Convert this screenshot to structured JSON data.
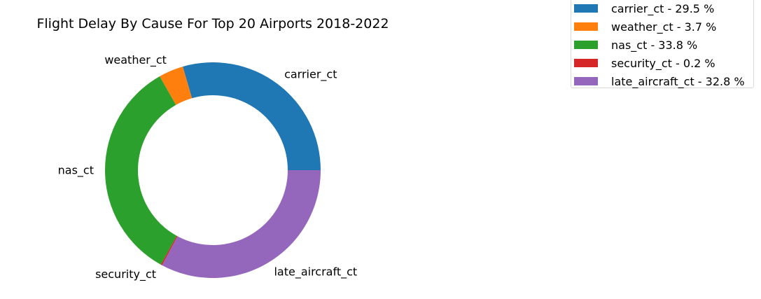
{
  "chart_data": {
    "type": "pie",
    "variant": "donut",
    "title": "Flight Delay By Cause For Top 20 Airports 2018-2022",
    "slices": [
      {
        "label": "carrier_ct",
        "value": 29.5,
        "color": "#1f77b4",
        "legend": "carrier_ct - 29.5 %"
      },
      {
        "label": "weather_ct",
        "value": 3.7,
        "color": "#ff7f0e",
        "legend": "weather_ct - 3.7 %"
      },
      {
        "label": "nas_ct",
        "value": 33.8,
        "color": "#2ca02c",
        "legend": "nas_ct - 33.8 %"
      },
      {
        "label": "security_ct",
        "value": 0.2,
        "color": "#d62728",
        "legend": "security_ct - 0.2 %"
      },
      {
        "label": "late_aircraft_ct",
        "value": 32.8,
        "color": "#9467bd",
        "legend": "late_aircraft_ct - 32.8 %"
      }
    ],
    "legend_position": "top-right"
  }
}
